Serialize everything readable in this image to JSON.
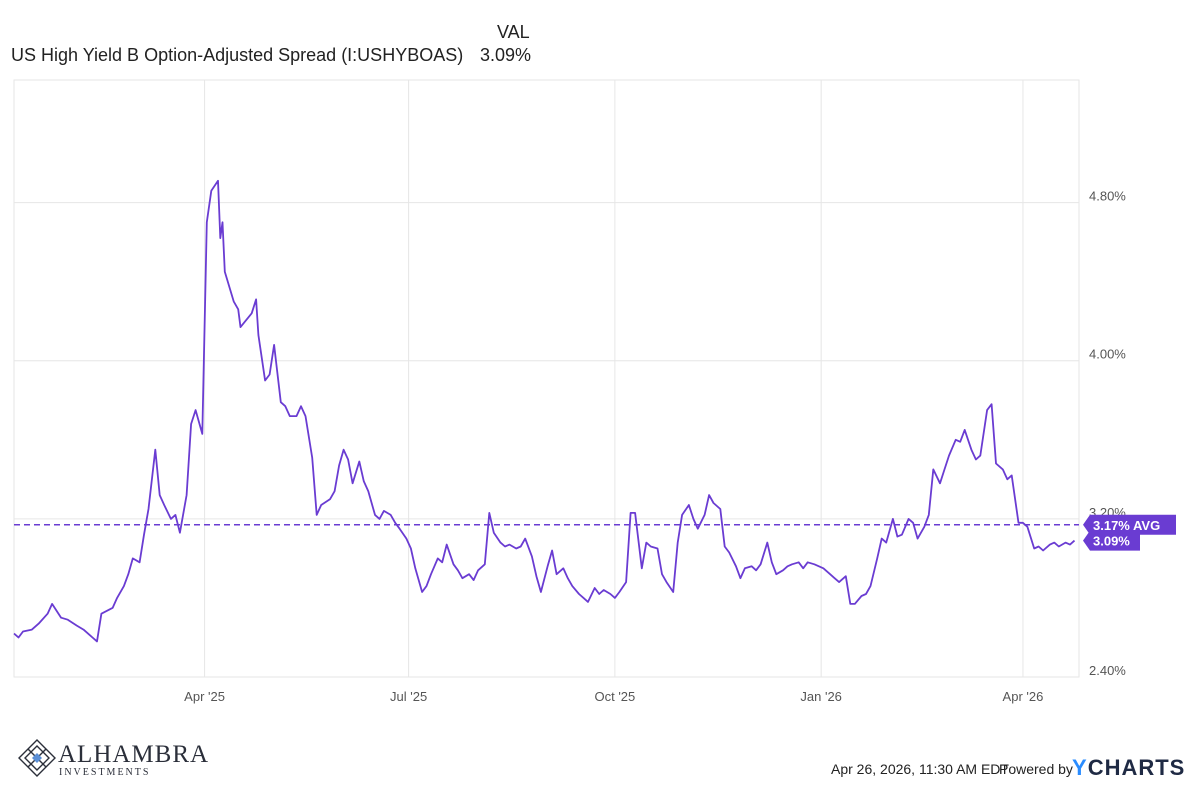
{
  "legend": {
    "column_header": "VAL",
    "series_name": "US High Yield B Option-Adjusted Spread (I:USHYBOAS)",
    "series_value": "3.09%"
  },
  "colors": {
    "line": "#6a3cd2",
    "badge": "#6a3cd2",
    "grid": "#e6e6e6",
    "axis_text": "#555555"
  },
  "chart_data": {
    "type": "line",
    "x_axis_type": "date",
    "x_ticks": [
      "Apr '25",
      "Jul '25",
      "Oct '25",
      "Jan '26",
      "Apr '26"
    ],
    "y_ticks": [
      "2.40%",
      "3.20%",
      "4.00%",
      "4.80%"
    ],
    "y_tick_values": [
      2.4,
      3.2,
      4.0,
      4.8
    ],
    "ylim": [
      2.4,
      5.42
    ],
    "xlim": [
      "2025-01-06",
      "2026-04-26"
    ],
    "grid": true,
    "average": {
      "value": 3.17,
      "label": "3.17% AVG"
    },
    "last_value": {
      "value": 3.09,
      "label": "3.09%"
    },
    "series": [
      {
        "values": [
          {
            "x": "2025-01-06",
            "y": 2.62
          },
          {
            "x": "2025-01-08",
            "y": 2.6
          },
          {
            "x": "2025-01-10",
            "y": 2.63
          },
          {
            "x": "2025-01-14",
            "y": 2.64
          },
          {
            "x": "2025-01-17",
            "y": 2.67
          },
          {
            "x": "2025-01-21",
            "y": 2.72
          },
          {
            "x": "2025-01-23",
            "y": 2.77
          },
          {
            "x": "2025-01-27",
            "y": 2.7
          },
          {
            "x": "2025-01-30",
            "y": 2.69
          },
          {
            "x": "2025-02-03",
            "y": 2.66
          },
          {
            "x": "2025-02-06",
            "y": 2.64
          },
          {
            "x": "2025-02-10",
            "y": 2.6
          },
          {
            "x": "2025-02-12",
            "y": 2.58
          },
          {
            "x": "2025-02-14",
            "y": 2.72
          },
          {
            "x": "2025-02-19",
            "y": 2.75
          },
          {
            "x": "2025-02-21",
            "y": 2.8
          },
          {
            "x": "2025-02-24",
            "y": 2.86
          },
          {
            "x": "2025-02-26",
            "y": 2.92
          },
          {
            "x": "2025-02-28",
            "y": 3.0
          },
          {
            "x": "2025-03-03",
            "y": 2.98
          },
          {
            "x": "2025-03-05",
            "y": 3.12
          },
          {
            "x": "2025-03-07",
            "y": 3.25
          },
          {
            "x": "2025-03-10",
            "y": 3.55
          },
          {
            "x": "2025-03-12",
            "y": 3.32
          },
          {
            "x": "2025-03-14",
            "y": 3.27
          },
          {
            "x": "2025-03-17",
            "y": 3.2
          },
          {
            "x": "2025-03-19",
            "y": 3.22
          },
          {
            "x": "2025-03-21",
            "y": 3.13
          },
          {
            "x": "2025-03-24",
            "y": 3.32
          },
          {
            "x": "2025-03-26",
            "y": 3.68
          },
          {
            "x": "2025-03-28",
            "y": 3.75
          },
          {
            "x": "2025-03-31",
            "y": 3.63
          },
          {
            "x": "2025-04-02",
            "y": 4.7
          },
          {
            "x": "2025-04-04",
            "y": 4.86
          },
          {
            "x": "2025-04-07",
            "y": 4.91
          },
          {
            "x": "2025-04-08",
            "y": 4.62
          },
          {
            "x": "2025-04-09",
            "y": 4.7
          },
          {
            "x": "2025-04-10",
            "y": 4.45
          },
          {
            "x": "2025-04-14",
            "y": 4.3
          },
          {
            "x": "2025-04-16",
            "y": 4.26
          },
          {
            "x": "2025-04-17",
            "y": 4.17
          },
          {
            "x": "2025-04-22",
            "y": 4.24
          },
          {
            "x": "2025-04-24",
            "y": 4.31
          },
          {
            "x": "2025-04-25",
            "y": 4.13
          },
          {
            "x": "2025-04-28",
            "y": 3.9
          },
          {
            "x": "2025-04-30",
            "y": 3.93
          },
          {
            "x": "2025-05-02",
            "y": 4.08
          },
          {
            "x": "2025-05-05",
            "y": 3.79
          },
          {
            "x": "2025-05-07",
            "y": 3.77
          },
          {
            "x": "2025-05-09",
            "y": 3.72
          },
          {
            "x": "2025-05-12",
            "y": 3.72
          },
          {
            "x": "2025-05-14",
            "y": 3.77
          },
          {
            "x": "2025-05-16",
            "y": 3.72
          },
          {
            "x": "2025-05-19",
            "y": 3.51
          },
          {
            "x": "2025-05-21",
            "y": 3.22
          },
          {
            "x": "2025-05-23",
            "y": 3.27
          },
          {
            "x": "2025-05-27",
            "y": 3.3
          },
          {
            "x": "2025-05-29",
            "y": 3.34
          },
          {
            "x": "2025-05-31",
            "y": 3.47
          },
          {
            "x": "2025-06-02",
            "y": 3.55
          },
          {
            "x": "2025-06-04",
            "y": 3.5
          },
          {
            "x": "2025-06-06",
            "y": 3.38
          },
          {
            "x": "2025-06-09",
            "y": 3.49
          },
          {
            "x": "2025-06-11",
            "y": 3.39
          },
          {
            "x": "2025-06-13",
            "y": 3.34
          },
          {
            "x": "2025-06-16",
            "y": 3.22
          },
          {
            "x": "2025-06-18",
            "y": 3.2
          },
          {
            "x": "2025-06-20",
            "y": 3.24
          },
          {
            "x": "2025-06-23",
            "y": 3.22
          },
          {
            "x": "2025-06-25",
            "y": 3.18
          },
          {
            "x": "2025-06-27",
            "y": 3.15
          },
          {
            "x": "2025-06-30",
            "y": 3.1
          },
          {
            "x": "2025-07-02",
            "y": 3.05
          },
          {
            "x": "2025-07-04",
            "y": 2.95
          },
          {
            "x": "2025-07-07",
            "y": 2.83
          },
          {
            "x": "2025-07-09",
            "y": 2.86
          },
          {
            "x": "2025-07-11",
            "y": 2.92
          },
          {
            "x": "2025-07-14",
            "y": 3.0
          },
          {
            "x": "2025-07-16",
            "y": 2.98
          },
          {
            "x": "2025-07-18",
            "y": 3.07
          },
          {
            "x": "2025-07-21",
            "y": 2.97
          },
          {
            "x": "2025-07-23",
            "y": 2.94
          },
          {
            "x": "2025-07-25",
            "y": 2.9
          },
          {
            "x": "2025-07-28",
            "y": 2.92
          },
          {
            "x": "2025-07-30",
            "y": 2.89
          },
          {
            "x": "2025-08-01",
            "y": 2.94
          },
          {
            "x": "2025-08-04",
            "y": 2.97
          },
          {
            "x": "2025-08-06",
            "y": 3.23
          },
          {
            "x": "2025-08-08",
            "y": 3.13
          },
          {
            "x": "2025-08-11",
            "y": 3.08
          },
          {
            "x": "2025-08-13",
            "y": 3.06
          },
          {
            "x": "2025-08-15",
            "y": 3.07
          },
          {
            "x": "2025-08-18",
            "y": 3.05
          },
          {
            "x": "2025-08-20",
            "y": 3.06
          },
          {
            "x": "2025-08-22",
            "y": 3.1
          },
          {
            "x": "2025-08-25",
            "y": 3.01
          },
          {
            "x": "2025-08-27",
            "y": 2.91
          },
          {
            "x": "2025-08-29",
            "y": 2.83
          },
          {
            "x": "2025-09-01",
            "y": 2.96
          },
          {
            "x": "2025-09-03",
            "y": 3.04
          },
          {
            "x": "2025-09-05",
            "y": 2.92
          },
          {
            "x": "2025-09-08",
            "y": 2.95
          },
          {
            "x": "2025-09-10",
            "y": 2.9
          },
          {
            "x": "2025-09-12",
            "y": 2.86
          },
          {
            "x": "2025-09-15",
            "y": 2.82
          },
          {
            "x": "2025-09-17",
            "y": 2.8
          },
          {
            "x": "2025-09-19",
            "y": 2.78
          },
          {
            "x": "2025-09-22",
            "y": 2.85
          },
          {
            "x": "2025-09-24",
            "y": 2.82
          },
          {
            "x": "2025-09-26",
            "y": 2.84
          },
          {
            "x": "2025-09-29",
            "y": 2.82
          },
          {
            "x": "2025-10-01",
            "y": 2.8
          },
          {
            "x": "2025-10-03",
            "y": 2.83
          },
          {
            "x": "2025-10-06",
            "y": 2.88
          },
          {
            "x": "2025-10-08",
            "y": 3.23
          },
          {
            "x": "2025-10-10",
            "y": 3.23
          },
          {
            "x": "2025-10-13",
            "y": 2.95
          },
          {
            "x": "2025-10-15",
            "y": 3.08
          },
          {
            "x": "2025-10-17",
            "y": 3.06
          },
          {
            "x": "2025-10-20",
            "y": 3.05
          },
          {
            "x": "2025-10-22",
            "y": 2.92
          },
          {
            "x": "2025-10-24",
            "y": 2.88
          },
          {
            "x": "2025-10-27",
            "y": 2.83
          },
          {
            "x": "2025-10-29",
            "y": 3.08
          },
          {
            "x": "2025-10-31",
            "y": 3.22
          },
          {
            "x": "2025-11-03",
            "y": 3.27
          },
          {
            "x": "2025-11-05",
            "y": 3.2
          },
          {
            "x": "2025-11-07",
            "y": 3.15
          },
          {
            "x": "2025-11-10",
            "y": 3.22
          },
          {
            "x": "2025-11-12",
            "y": 3.32
          },
          {
            "x": "2025-11-14",
            "y": 3.28
          },
          {
            "x": "2025-11-17",
            "y": 3.25
          },
          {
            "x": "2025-11-19",
            "y": 3.06
          },
          {
            "x": "2025-11-21",
            "y": 3.03
          },
          {
            "x": "2025-11-24",
            "y": 2.96
          },
          {
            "x": "2025-11-26",
            "y": 2.9
          },
          {
            "x": "2025-11-28",
            "y": 2.95
          },
          {
            "x": "2025-12-01",
            "y": 2.96
          },
          {
            "x": "2025-12-03",
            "y": 2.94
          },
          {
            "x": "2025-12-05",
            "y": 2.97
          },
          {
            "x": "2025-12-08",
            "y": 3.08
          },
          {
            "x": "2025-12-10",
            "y": 2.98
          },
          {
            "x": "2025-12-12",
            "y": 2.92
          },
          {
            "x": "2025-12-15",
            "y": 2.94
          },
          {
            "x": "2025-12-17",
            "y": 2.96
          },
          {
            "x": "2025-12-19",
            "y": 2.97
          },
          {
            "x": "2025-12-22",
            "y": 2.98
          },
          {
            "x": "2025-12-24",
            "y": 2.95
          },
          {
            "x": "2025-12-26",
            "y": 2.98
          },
          {
            "x": "2025-12-29",
            "y": 2.97
          },
          {
            "x": "2026-01-02",
            "y": 2.95
          },
          {
            "x": "2026-01-05",
            "y": 2.92
          },
          {
            "x": "2026-01-07",
            "y": 2.9
          },
          {
            "x": "2026-01-09",
            "y": 2.88
          },
          {
            "x": "2026-01-12",
            "y": 2.91
          },
          {
            "x": "2026-01-14",
            "y": 2.77
          },
          {
            "x": "2026-01-16",
            "y": 2.77
          },
          {
            "x": "2026-01-19",
            "y": 2.81
          },
          {
            "x": "2026-01-21",
            "y": 2.82
          },
          {
            "x": "2026-01-23",
            "y": 2.86
          },
          {
            "x": "2026-01-26",
            "y": 3.0
          },
          {
            "x": "2026-01-28",
            "y": 3.1
          },
          {
            "x": "2026-01-30",
            "y": 3.08
          },
          {
            "x": "2026-02-02",
            "y": 3.2
          },
          {
            "x": "2026-02-04",
            "y": 3.11
          },
          {
            "x": "2026-02-06",
            "y": 3.12
          },
          {
            "x": "2026-02-09",
            "y": 3.2
          },
          {
            "x": "2026-02-11",
            "y": 3.18
          },
          {
            "x": "2026-02-13",
            "y": 3.1
          },
          {
            "x": "2026-02-16",
            "y": 3.16
          },
          {
            "x": "2026-02-18",
            "y": 3.22
          },
          {
            "x": "2026-02-20",
            "y": 3.45
          },
          {
            "x": "2026-02-23",
            "y": 3.38
          },
          {
            "x": "2026-02-25",
            "y": 3.45
          },
          {
            "x": "2026-02-27",
            "y": 3.52
          },
          {
            "x": "2026-03-02",
            "y": 3.6
          },
          {
            "x": "2026-03-04",
            "y": 3.59
          },
          {
            "x": "2026-03-06",
            "y": 3.65
          },
          {
            "x": "2026-03-09",
            "y": 3.55
          },
          {
            "x": "2026-03-11",
            "y": 3.5
          },
          {
            "x": "2026-03-13",
            "y": 3.52
          },
          {
            "x": "2026-03-16",
            "y": 3.75
          },
          {
            "x": "2026-03-18",
            "y": 3.78
          },
          {
            "x": "2026-03-20",
            "y": 3.48
          },
          {
            "x": "2026-03-23",
            "y": 3.45
          },
          {
            "x": "2026-03-25",
            "y": 3.4
          },
          {
            "x": "2026-03-27",
            "y": 3.42
          },
          {
            "x": "2026-03-30",
            "y": 3.18
          },
          {
            "x": "2026-04-01",
            "y": 3.18
          },
          {
            "x": "2026-04-03",
            "y": 3.16
          },
          {
            "x": "2026-04-06",
            "y": 3.05
          },
          {
            "x": "2026-04-08",
            "y": 3.06
          },
          {
            "x": "2026-04-10",
            "y": 3.04
          },
          {
            "x": "2026-04-13",
            "y": 3.07
          },
          {
            "x": "2026-04-15",
            "y": 3.08
          },
          {
            "x": "2026-04-17",
            "y": 3.06
          },
          {
            "x": "2026-04-20",
            "y": 3.08
          },
          {
            "x": "2026-04-22",
            "y": 3.07
          },
          {
            "x": "2026-04-24",
            "y": 3.09
          }
        ]
      }
    ]
  },
  "footer": {
    "logo_name": "ALHAMBRA",
    "logo_subtitle": "INVESTMENTS",
    "logo_icon": "diamond-lattice-icon",
    "timestamp": "Apr 26, 2026, 11:30 AM EDT",
    "powered_by": "Powered by",
    "brand_y": "Y",
    "brand_rest": "CHARTS"
  }
}
